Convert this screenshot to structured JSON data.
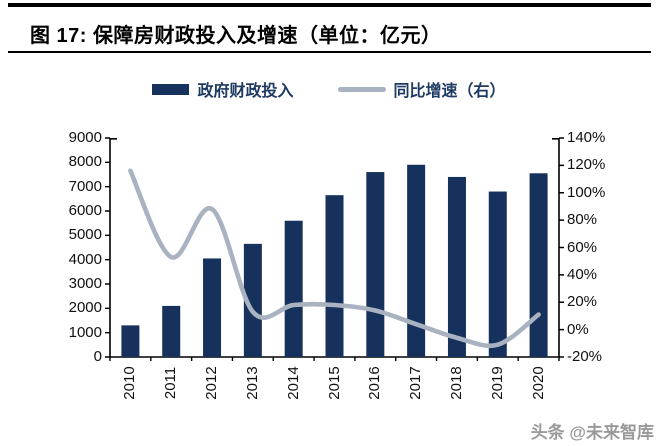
{
  "header": {
    "title": "图 17: 保障房财政投入及增速（单位：亿元）"
  },
  "legend": {
    "items": [
      {
        "label": "政府财政投入",
        "swatch": "bar-swatch"
      },
      {
        "label": "同比增速（右）",
        "swatch": "line-swatch"
      }
    ]
  },
  "colors": {
    "bar": "#16315c",
    "line": "#a9b2c1",
    "legend_text": "#1f3a63",
    "axis_line": "#000000",
    "axis_text": "#111111",
    "title_text": "#000000",
    "watermark_text": "#9a9a9a"
  },
  "chart_data": {
    "type": "bar",
    "title": "图 17: 保障房财政投入及增速（单位：亿元）",
    "categories": [
      "2010",
      "2011",
      "2012",
      "2013",
      "2014",
      "2015",
      "2016",
      "2017",
      "2018",
      "2019",
      "2020"
    ],
    "series": [
      {
        "name": "政府财政投入",
        "type": "bar",
        "axis": "left",
        "unit": "亿元",
        "values": [
          1300,
          2100,
          4050,
          4650,
          5600,
          6650,
          7600,
          7900,
          7400,
          6800,
          7550
        ]
      },
      {
        "name": "同比增速（右）",
        "type": "line",
        "axis": "right",
        "unit": "%",
        "values": [
          116,
          53,
          88,
          13,
          18,
          18,
          14,
          4,
          -6,
          -11,
          11
        ]
      }
    ],
    "left_axis": {
      "min": 0,
      "max": 9000,
      "step": 1000,
      "tick_labels": [
        "9000",
        "8000",
        "7000",
        "6000",
        "5000",
        "4000",
        "3000",
        "2000",
        "1000",
        "0"
      ]
    },
    "right_axis": {
      "min": -20,
      "max": 140,
      "step": 20,
      "tick_labels": [
        "140%",
        "120%",
        "100%",
        "80%",
        "60%",
        "40%",
        "20%",
        "0%",
        "-20%"
      ]
    },
    "grid": false,
    "legend_position": "top",
    "xlabel": "",
    "ylabel": ""
  },
  "footer": {
    "watermark": "头条 @未来智库"
  }
}
